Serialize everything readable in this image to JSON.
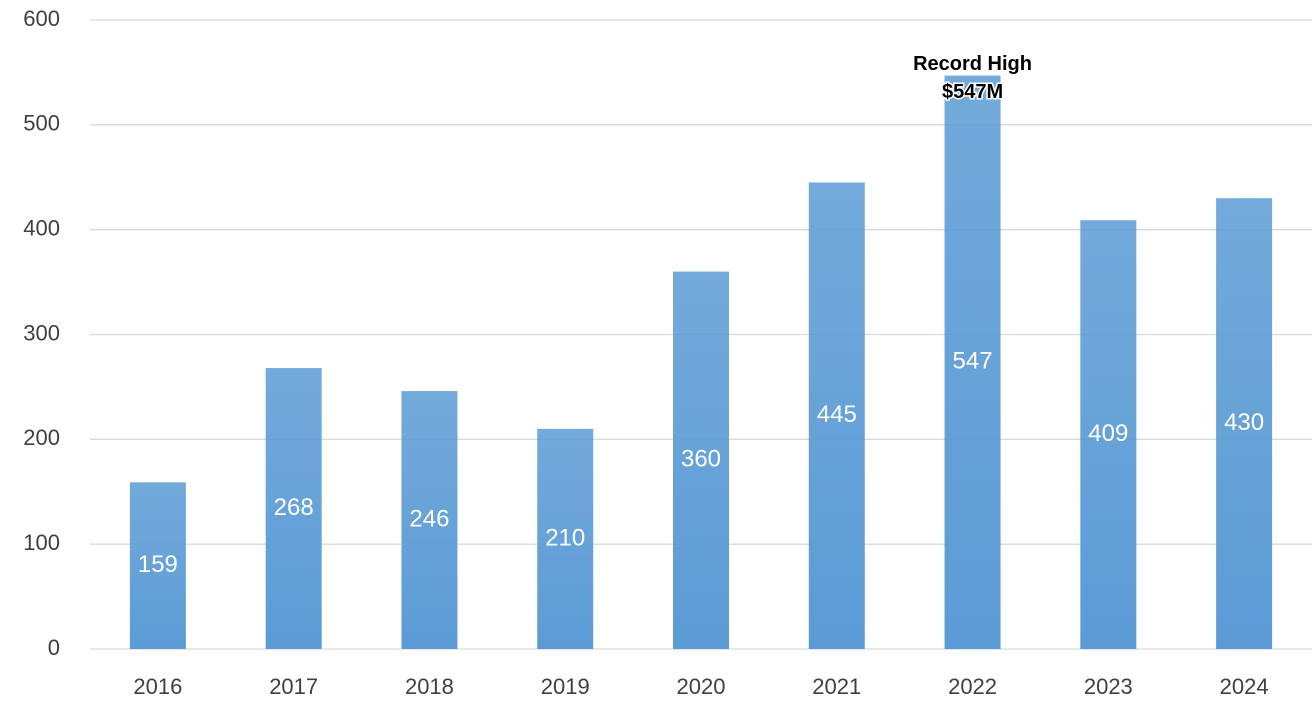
{
  "chart_data": {
    "type": "bar",
    "categories": [
      "2016",
      "2017",
      "2018",
      "2019",
      "2020",
      "2021",
      "2022",
      "2023",
      "2024"
    ],
    "values": [
      159,
      268,
      246,
      210,
      360,
      445,
      547,
      409,
      430
    ],
    "color": "#5b9bd5",
    "ylim": [
      0,
      600
    ],
    "yticks": [
      0,
      100,
      200,
      300,
      400,
      500,
      600
    ],
    "grid": true,
    "annotation": [
      "Record High",
      "$547M"
    ]
  }
}
